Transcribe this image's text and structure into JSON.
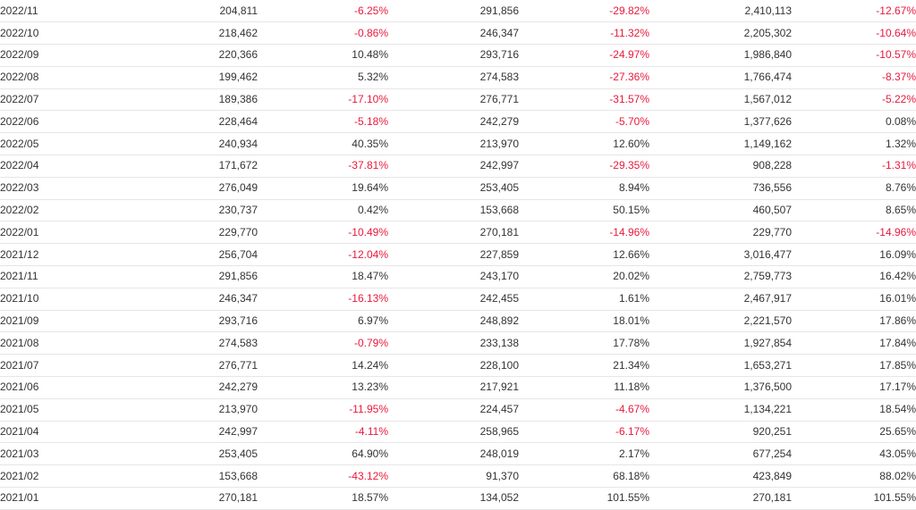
{
  "colors": {
    "negative": "#e8193c",
    "text": "#333333",
    "row_border": "#e6e6e6"
  },
  "rows": [
    [
      "2022/11",
      "204,811",
      "-6.25%",
      "291,856",
      "-29.82%",
      "2,410,113",
      "-12.67%"
    ],
    [
      "2022/10",
      "218,462",
      "-0.86%",
      "246,347",
      "-11.32%",
      "2,205,302",
      "-10.64%"
    ],
    [
      "2022/09",
      "220,366",
      "10.48%",
      "293,716",
      "-24.97%",
      "1,986,840",
      "-10.57%"
    ],
    [
      "2022/08",
      "199,462",
      "5.32%",
      "274,583",
      "-27.36%",
      "1,766,474",
      "-8.37%"
    ],
    [
      "2022/07",
      "189,386",
      "-17.10%",
      "276,771",
      "-31.57%",
      "1,567,012",
      "-5.22%"
    ],
    [
      "2022/06",
      "228,464",
      "-5.18%",
      "242,279",
      "-5.70%",
      "1,377,626",
      "0.08%"
    ],
    [
      "2022/05",
      "240,934",
      "40.35%",
      "213,970",
      "12.60%",
      "1,149,162",
      "1.32%"
    ],
    [
      "2022/04",
      "171,672",
      "-37.81%",
      "242,997",
      "-29.35%",
      "908,228",
      "-1.31%"
    ],
    [
      "2022/03",
      "276,049",
      "19.64%",
      "253,405",
      "8.94%",
      "736,556",
      "8.76%"
    ],
    [
      "2022/02",
      "230,737",
      "0.42%",
      "153,668",
      "50.15%",
      "460,507",
      "8.65%"
    ],
    [
      "2022/01",
      "229,770",
      "-10.49%",
      "270,181",
      "-14.96%",
      "229,770",
      "-14.96%"
    ],
    [
      "2021/12",
      "256,704",
      "-12.04%",
      "227,859",
      "12.66%",
      "3,016,477",
      "16.09%"
    ],
    [
      "2021/11",
      "291,856",
      "18.47%",
      "243,170",
      "20.02%",
      "2,759,773",
      "16.42%"
    ],
    [
      "2021/10",
      "246,347",
      "-16.13%",
      "242,455",
      "1.61%",
      "2,467,917",
      "16.01%"
    ],
    [
      "2021/09",
      "293,716",
      "6.97%",
      "248,892",
      "18.01%",
      "2,221,570",
      "17.86%"
    ],
    [
      "2021/08",
      "274,583",
      "-0.79%",
      "233,138",
      "17.78%",
      "1,927,854",
      "17.84%"
    ],
    [
      "2021/07",
      "276,771",
      "14.24%",
      "228,100",
      "21.34%",
      "1,653,271",
      "17.85%"
    ],
    [
      "2021/06",
      "242,279",
      "13.23%",
      "217,921",
      "11.18%",
      "1,376,500",
      "17.17%"
    ],
    [
      "2021/05",
      "213,970",
      "-11.95%",
      "224,457",
      "-4.67%",
      "1,134,221",
      "18.54%"
    ],
    [
      "2021/04",
      "242,997",
      "-4.11%",
      "258,965",
      "-6.17%",
      "920,251",
      "25.65%"
    ],
    [
      "2021/03",
      "253,405",
      "64.90%",
      "248,019",
      "2.17%",
      "677,254",
      "43.05%"
    ],
    [
      "2021/02",
      "153,668",
      "-43.12%",
      "91,370",
      "68.18%",
      "423,849",
      "88.02%"
    ],
    [
      "2021/01",
      "270,181",
      "18.57%",
      "134,052",
      "101.55%",
      "270,181",
      "101.55%"
    ]
  ]
}
